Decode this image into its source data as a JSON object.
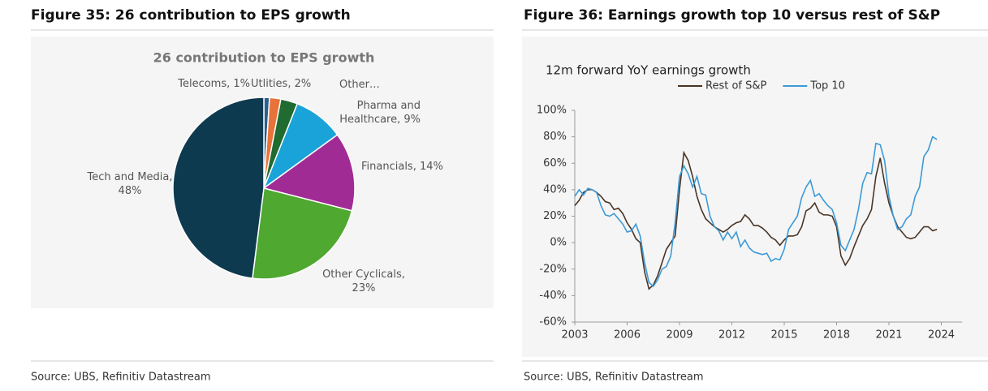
{
  "figures": [
    {
      "heading": "Figure 35: 26 contribution to EPS growth",
      "source": "Source: UBS, Refinitiv Datastream"
    },
    {
      "heading": "Figure 36: Earnings growth top 10 versus rest of S&P",
      "source": "Source: UBS, Refinitiv Datastream"
    }
  ],
  "chart_data": [
    {
      "type": "pie",
      "title": "26 contribution to EPS growth",
      "labels": [
        "Telecoms, 1%",
        "Utlities, 2%",
        "Other…",
        "Pharma and Healthcare, 9%",
        "Financials, 14%",
        "Other Cyclicals, 23%",
        "Tech and Media, 48%"
      ],
      "values": [
        1,
        2,
        3,
        9,
        14,
        23,
        48
      ],
      "colors": [
        "#2b5f8f",
        "#e8733a",
        "#1f6b30",
        "#1aa3d9",
        "#a12b94",
        "#4fa82f",
        "#0e3a50"
      ]
    },
    {
      "type": "line",
      "title": "12m forward YoY earnings growth",
      "x": [
        2003,
        2003.25,
        2003.5,
        2003.75,
        2004,
        2004.25,
        2004.5,
        2004.75,
        2005,
        2005.25,
        2005.5,
        2005.75,
        2006,
        2006.25,
        2006.5,
        2006.75,
        2007,
        2007.25,
        2007.5,
        2007.75,
        2008,
        2008.25,
        2008.5,
        2008.75,
        2009,
        2009.25,
        2009.5,
        2009.75,
        2010,
        2010.25,
        2010.5,
        2010.75,
        2011,
        2011.25,
        2011.5,
        2011.75,
        2012,
        2012.25,
        2012.5,
        2012.75,
        2013,
        2013.25,
        2013.5,
        2013.75,
        2014,
        2014.25,
        2014.5,
        2014.75,
        2015,
        2015.25,
        2015.5,
        2015.75,
        2016,
        2016.25,
        2016.5,
        2016.75,
        2017,
        2017.25,
        2017.5,
        2017.75,
        2018,
        2018.25,
        2018.5,
        2018.75,
        2019,
        2019.25,
        2019.5,
        2019.75,
        2020,
        2020.25,
        2020.5,
        2020.75,
        2021,
        2021.25,
        2021.5,
        2021.75,
        2022,
        2022.25,
        2022.5,
        2022.75,
        2023,
        2023.25,
        2023.5,
        2023.75
      ],
      "series": [
        {
          "name": "Rest of S&P",
          "color": "#4a3526",
          "values": [
            28,
            32,
            38,
            40,
            40,
            38,
            35,
            31,
            30,
            25,
            26,
            22,
            15,
            10,
            3,
            0,
            -22,
            -35,
            -32,
            -25,
            -15,
            -5,
            0,
            5,
            40,
            68,
            62,
            50,
            35,
            25,
            18,
            15,
            12,
            10,
            8,
            10,
            13,
            15,
            16,
            21,
            18,
            13,
            13,
            11,
            8,
            4,
            2,
            -2,
            2,
            5,
            5,
            6,
            12,
            24,
            26,
            30,
            23,
            21,
            21,
            20,
            12,
            -10,
            -17,
            -12,
            -3,
            5,
            13,
            18,
            25,
            50,
            64,
            45,
            30,
            20,
            12,
            8,
            4,
            3,
            4,
            8,
            12,
            12,
            9,
            10
          ]
        },
        {
          "name": "Top 10",
          "color": "#3b9ad6",
          "values": [
            35,
            40,
            36,
            41,
            40,
            38,
            28,
            21,
            20,
            22,
            18,
            14,
            8,
            9,
            14,
            5,
            -15,
            -30,
            -33,
            -28,
            -20,
            -18,
            -10,
            15,
            50,
            58,
            52,
            42,
            50,
            37,
            36,
            20,
            12,
            9,
            2,
            8,
            3,
            8,
            -3,
            2,
            -4,
            -7,
            -8,
            -9,
            -8,
            -14,
            -12,
            -13,
            -5,
            10,
            15,
            20,
            34,
            42,
            47,
            35,
            37,
            32,
            28,
            25,
            15,
            -2,
            -6,
            2,
            10,
            25,
            45,
            53,
            52,
            75,
            74,
            62,
            35,
            20,
            10,
            12,
            18,
            21,
            35,
            42,
            65,
            70,
            80,
            78
          ]
        }
      ],
      "xlim": [
        2003,
        2025.2
      ],
      "xticks": [
        2003,
        2006,
        2009,
        2012,
        2015,
        2018,
        2021,
        2024
      ],
      "ylim": [
        -60,
        100
      ],
      "yticks": [
        {
          "value": -60,
          "label": "-60%"
        },
        {
          "value": -40,
          "label": "-40%"
        },
        {
          "value": -20,
          "label": "-20%"
        },
        {
          "value": 0,
          "label": "0%"
        },
        {
          "value": 20,
          "label": "20%"
        },
        {
          "value": 40,
          "label": "40%"
        },
        {
          "value": 60,
          "label": "60%"
        },
        {
          "value": 80,
          "label": "80%"
        },
        {
          "value": 100,
          "label": "100%"
        }
      ],
      "legend": "top"
    }
  ]
}
